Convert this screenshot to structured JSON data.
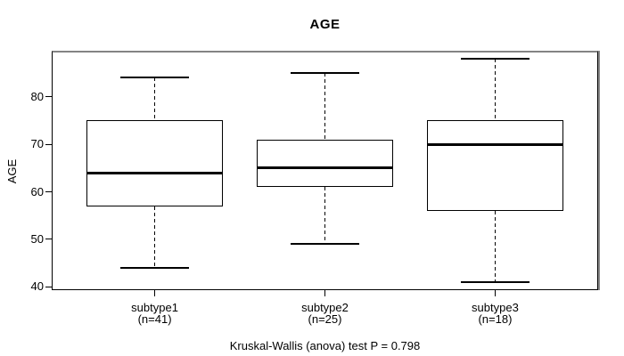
{
  "chart_data": {
    "type": "boxplot",
    "title": "AGE",
    "ylabel": "AGE",
    "xlabel": "",
    "annotation": "Kruskal-Wallis (anova) test P = 0.798",
    "ylim": [
      39.5,
      89.3
    ],
    "xlim": [
      0.4,
      3.6
    ],
    "yticks": [
      40,
      50,
      60,
      70,
      80
    ],
    "grid": false,
    "legend": "none",
    "box_width": 0.8,
    "cap_width": 0.4,
    "groups": [
      {
        "label": "subtype1",
        "sublabel": "(n=41)",
        "n": 41,
        "position": 1,
        "whisker_low": 44,
        "q1": 57,
        "median": 64,
        "q3": 75,
        "whisker_high": 84
      },
      {
        "label": "subtype2",
        "sublabel": "(n=25)",
        "n": 25,
        "position": 2,
        "whisker_low": 49,
        "q1": 61,
        "median": 65,
        "q3": 71,
        "whisker_high": 85
      },
      {
        "label": "subtype3",
        "sublabel": "(n=18)",
        "n": 18,
        "position": 3,
        "whisker_low": 41,
        "q1": 56,
        "median": 70,
        "q3": 75,
        "whisker_high": 88
      }
    ],
    "colors": {
      "stroke": "#000000",
      "frame_shadow": "#848484",
      "background": "#ffffff",
      "text": "#000000"
    }
  }
}
